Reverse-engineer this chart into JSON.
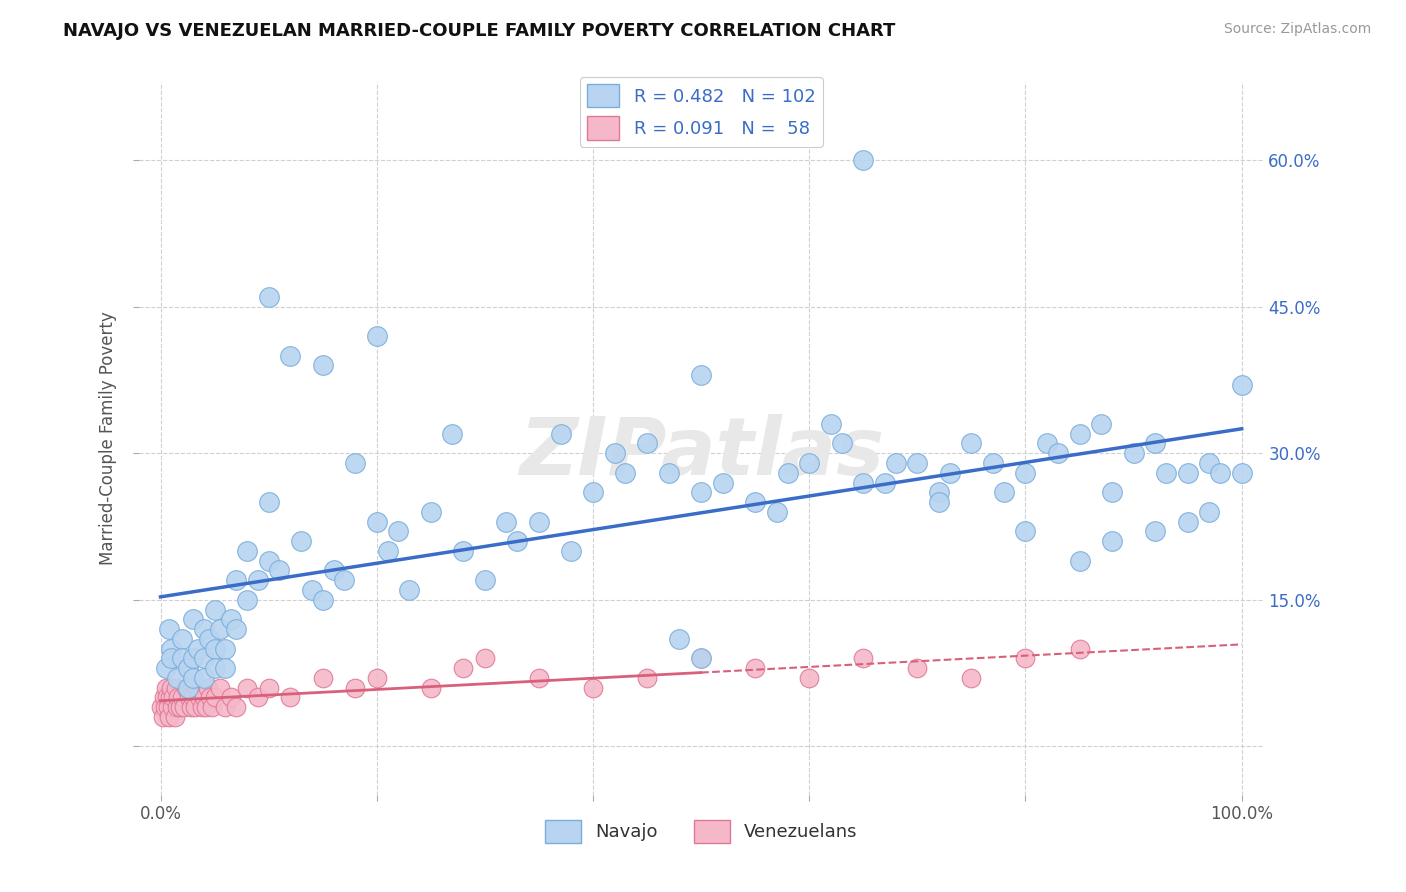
{
  "title": "NAVAJO VS VENEZUELAN MARRIED-COUPLE FAMILY POVERTY CORRELATION CHART",
  "source": "Source: ZipAtlas.com",
  "ylabel": "Married-Couple Family Poverty",
  "xlim": [
    -0.02,
    1.02
  ],
  "ylim": [
    -0.05,
    0.68
  ],
  "xticks": [
    0.0,
    0.2,
    0.4,
    0.6,
    0.8,
    1.0
  ],
  "xticklabels": [
    "0.0%",
    "",
    "",
    "",
    "",
    "100.0%"
  ],
  "ytick_positions": [
    0.0,
    0.15,
    0.3,
    0.45,
    0.6
  ],
  "yticklabels_left": [
    "",
    "",
    "",
    "",
    ""
  ],
  "yticklabels_right": [
    "",
    "15.0%",
    "30.0%",
    "45.0%",
    "60.0%"
  ],
  "background_color": "#ffffff",
  "grid_color": "#d0d0d0",
  "watermark": "ZIPatlas",
  "navajo_color": "#b8d4f0",
  "navajo_edge_color": "#7aaddb",
  "venezuelan_color": "#f5b8c8",
  "venezuelan_edge_color": "#e07898",
  "navajo_line_color": "#3a6dc8",
  "venezuelan_line_color": "#d9607a",
  "label_color": "#3a6dc8",
  "legend_navajo_R": "0.482",
  "legend_navajo_N": "102",
  "legend_venezuelan_R": "0.091",
  "legend_venezuelan_N": " 58",
  "navajo_x": [
    0.005,
    0.008,
    0.01,
    0.01,
    0.015,
    0.02,
    0.02,
    0.025,
    0.025,
    0.03,
    0.03,
    0.03,
    0.035,
    0.04,
    0.04,
    0.04,
    0.045,
    0.05,
    0.05,
    0.05,
    0.055,
    0.06,
    0.06,
    0.065,
    0.07,
    0.07,
    0.08,
    0.08,
    0.09,
    0.1,
    0.1,
    0.11,
    0.12,
    0.13,
    0.14,
    0.15,
    0.16,
    0.17,
    0.18,
    0.2,
    0.21,
    0.22,
    0.23,
    0.25,
    0.27,
    0.28,
    0.3,
    0.32,
    0.33,
    0.35,
    0.37,
    0.38,
    0.4,
    0.42,
    0.43,
    0.45,
    0.47,
    0.48,
    0.5,
    0.5,
    0.52,
    0.55,
    0.57,
    0.58,
    0.6,
    0.62,
    0.63,
    0.65,
    0.67,
    0.68,
    0.7,
    0.72,
    0.73,
    0.75,
    0.77,
    0.78,
    0.8,
    0.82,
    0.83,
    0.85,
    0.87,
    0.88,
    0.9,
    0.92,
    0.93,
    0.95,
    0.97,
    0.98,
    1.0,
    1.0,
    0.15,
    0.5,
    0.65,
    0.72,
    0.8,
    0.85,
    0.88,
    0.92,
    0.95,
    0.97,
    0.1,
    0.2
  ],
  "navajo_y": [
    0.08,
    0.12,
    0.1,
    0.09,
    0.07,
    0.11,
    0.09,
    0.08,
    0.06,
    0.13,
    0.09,
    0.07,
    0.1,
    0.12,
    0.09,
    0.07,
    0.11,
    0.14,
    0.1,
    0.08,
    0.12,
    0.1,
    0.08,
    0.13,
    0.12,
    0.17,
    0.15,
    0.2,
    0.17,
    0.19,
    0.25,
    0.18,
    0.4,
    0.21,
    0.16,
    0.15,
    0.18,
    0.17,
    0.29,
    0.23,
    0.2,
    0.22,
    0.16,
    0.24,
    0.32,
    0.2,
    0.17,
    0.23,
    0.21,
    0.23,
    0.32,
    0.2,
    0.26,
    0.3,
    0.28,
    0.31,
    0.28,
    0.11,
    0.26,
    0.09,
    0.27,
    0.25,
    0.24,
    0.28,
    0.29,
    0.33,
    0.31,
    0.27,
    0.27,
    0.29,
    0.29,
    0.26,
    0.28,
    0.31,
    0.29,
    0.26,
    0.28,
    0.31,
    0.3,
    0.32,
    0.33,
    0.26,
    0.3,
    0.31,
    0.28,
    0.28,
    0.29,
    0.28,
    0.37,
    0.28,
    0.39,
    0.38,
    0.6,
    0.25,
    0.22,
    0.19,
    0.21,
    0.22,
    0.23,
    0.24,
    0.46,
    0.42
  ],
  "venezuelan_x": [
    0.0,
    0.002,
    0.003,
    0.004,
    0.005,
    0.006,
    0.007,
    0.008,
    0.009,
    0.01,
    0.011,
    0.012,
    0.013,
    0.014,
    0.015,
    0.016,
    0.018,
    0.02,
    0.022,
    0.024,
    0.026,
    0.028,
    0.03,
    0.032,
    0.034,
    0.036,
    0.038,
    0.04,
    0.042,
    0.044,
    0.046,
    0.048,
    0.05,
    0.055,
    0.06,
    0.065,
    0.07,
    0.08,
    0.09,
    0.1,
    0.12,
    0.15,
    0.18,
    0.2,
    0.25,
    0.28,
    0.3,
    0.35,
    0.4,
    0.45,
    0.5,
    0.55,
    0.6,
    0.65,
    0.7,
    0.75,
    0.8,
    0.85
  ],
  "venezuelan_y": [
    0.04,
    0.03,
    0.05,
    0.04,
    0.06,
    0.05,
    0.04,
    0.03,
    0.05,
    0.06,
    0.04,
    0.05,
    0.03,
    0.06,
    0.04,
    0.05,
    0.04,
    0.05,
    0.04,
    0.06,
    0.05,
    0.04,
    0.05,
    0.04,
    0.06,
    0.05,
    0.04,
    0.05,
    0.04,
    0.06,
    0.05,
    0.04,
    0.05,
    0.06,
    0.04,
    0.05,
    0.04,
    0.06,
    0.05,
    0.06,
    0.05,
    0.07,
    0.06,
    0.07,
    0.06,
    0.08,
    0.09,
    0.07,
    0.06,
    0.07,
    0.09,
    0.08,
    0.07,
    0.09,
    0.08,
    0.07,
    0.09,
    0.1
  ]
}
